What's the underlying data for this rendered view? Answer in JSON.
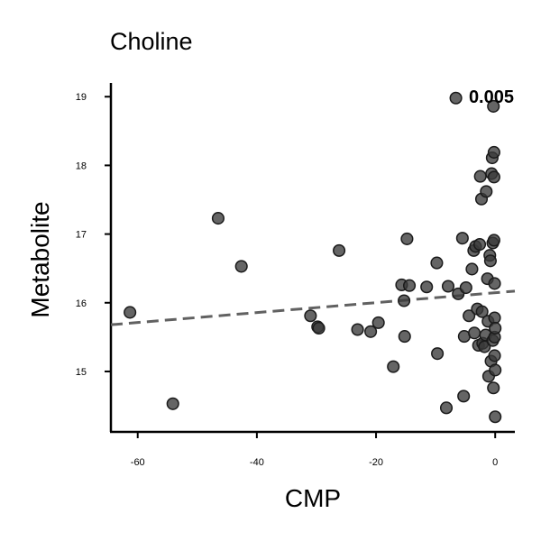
{
  "chart_data": {
    "type": "scatter",
    "title": "Choline",
    "xlabel": "CMP",
    "ylabel": "Metabolite",
    "annotation": "0.005",
    "xlim": [
      -64.5,
      3.3
    ],
    "ylim": [
      14.12,
      19.2
    ],
    "xticks": [
      -60,
      -40,
      -20,
      0
    ],
    "yticks": [
      15,
      16,
      17,
      18,
      19
    ],
    "grid": false,
    "trend": {
      "x": [
        -64.5,
        3.3
      ],
      "y": [
        15.68,
        16.17
      ]
    },
    "points": [
      {
        "x": -61.3,
        "y": 15.86
      },
      {
        "x": -54.1,
        "y": 14.53
      },
      {
        "x": -46.5,
        "y": 17.23
      },
      {
        "x": -42.6,
        "y": 16.53
      },
      {
        "x": -31.0,
        "y": 15.81
      },
      {
        "x": -29.8,
        "y": 15.65
      },
      {
        "x": -29.6,
        "y": 15.63
      },
      {
        "x": -26.2,
        "y": 16.76
      },
      {
        "x": -23.1,
        "y": 15.61
      },
      {
        "x": -20.9,
        "y": 15.58
      },
      {
        "x": -19.6,
        "y": 15.71
      },
      {
        "x": -17.1,
        "y": 15.07
      },
      {
        "x": -15.7,
        "y": 16.26
      },
      {
        "x": -15.3,
        "y": 16.03
      },
      {
        "x": -15.2,
        "y": 15.51
      },
      {
        "x": -14.8,
        "y": 16.93
      },
      {
        "x": -14.4,
        "y": 16.25
      },
      {
        "x": -11.5,
        "y": 16.23
      },
      {
        "x": -9.8,
        "y": 16.58
      },
      {
        "x": -9.7,
        "y": 15.26
      },
      {
        "x": -8.2,
        "y": 14.47
      },
      {
        "x": -7.9,
        "y": 16.24
      },
      {
        "x": -6.6,
        "y": 18.98
      },
      {
        "x": -6.2,
        "y": 16.13
      },
      {
        "x": -5.5,
        "y": 16.94
      },
      {
        "x": -5.3,
        "y": 14.64
      },
      {
        "x": -5.2,
        "y": 15.51
      },
      {
        "x": -4.9,
        "y": 16.22
      },
      {
        "x": -4.4,
        "y": 15.81
      },
      {
        "x": -3.9,
        "y": 16.49
      },
      {
        "x": -3.6,
        "y": 16.76
      },
      {
        "x": -3.5,
        "y": 15.56
      },
      {
        "x": -3.3,
        "y": 16.82
      },
      {
        "x": -3.0,
        "y": 15.91
      },
      {
        "x": -2.8,
        "y": 15.38
      },
      {
        "x": -2.6,
        "y": 16.85
      },
      {
        "x": -2.5,
        "y": 17.84
      },
      {
        "x": -2.3,
        "y": 17.51
      },
      {
        "x": -2.2,
        "y": 15.87
      },
      {
        "x": -2.1,
        "y": 15.41
      },
      {
        "x": -1.8,
        "y": 15.36
      },
      {
        "x": -1.6,
        "y": 15.53
      },
      {
        "x": -1.5,
        "y": 17.62
      },
      {
        "x": -1.3,
        "y": 16.35
      },
      {
        "x": -1.2,
        "y": 15.73
      },
      {
        "x": -1.1,
        "y": 14.93
      },
      {
        "x": -0.9,
        "y": 16.69
      },
      {
        "x": -0.8,
        "y": 16.61
      },
      {
        "x": -0.7,
        "y": 15.15
      },
      {
        "x": -0.6,
        "y": 17.88
      },
      {
        "x": -0.5,
        "y": 18.11
      },
      {
        "x": -0.4,
        "y": 16.87
      },
      {
        "x": -0.4,
        "y": 15.45
      },
      {
        "x": -0.3,
        "y": 14.76
      },
      {
        "x": -0.3,
        "y": 18.86
      },
      {
        "x": -0.2,
        "y": 18.19
      },
      {
        "x": -0.2,
        "y": 17.83
      },
      {
        "x": -0.2,
        "y": 16.91
      },
      {
        "x": -0.1,
        "y": 16.28
      },
      {
        "x": -0.1,
        "y": 15.78
      },
      {
        "x": -0.1,
        "y": 15.5
      },
      {
        "x": -0.1,
        "y": 15.23
      },
      {
        "x": 0.0,
        "y": 14.34
      },
      {
        "x": 0.0,
        "y": 15.02
      },
      {
        "x": 0.0,
        "y": 15.63
      }
    ]
  }
}
